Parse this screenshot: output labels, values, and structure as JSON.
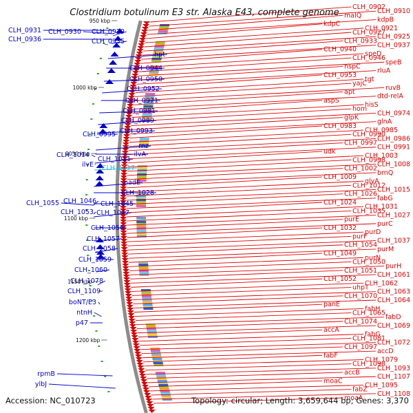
{
  "title": "Clostridium botulinum E3 str. Alaska E43, complete genome",
  "footer": {
    "accession": "Accession: NC_010723",
    "summary": "Topology: circular; Length: 3,659,644 bp; Genes: 3,370"
  },
  "colors": {
    "forward": "#0000cc",
    "reverse": "#dd0000",
    "highlight": "#22bbdd",
    "backbone": "#8c8c8c",
    "tick": "#22aa22"
  },
  "ticks": [
    "950 kbp",
    "1000 kbp",
    "1050 kbp",
    "1100 kbp",
    "1150 kbp",
    "1200 kbp"
  ],
  "left_labels": [
    "CLH_0931",
    "CLH_0930",
    "CLH_0929",
    "CLH_0936",
    "CLH_0935",
    "hpt",
    "CLH_0944",
    "CLH_0950",
    "CLH_0952",
    "CLH_0971",
    "CLH_0981",
    "CLH_0989",
    "CLH_0995",
    "CLH_0993",
    "rnz",
    "ilvA",
    "CLH_1014",
    "CLH_1011",
    "ilvE",
    "CLH_1017",
    "nadE",
    "CLH_1028",
    "CLH_1055",
    "CLH_1046",
    "CLH_1045",
    "CLH_1053",
    "CLH_1047",
    "CLH_1056",
    "CLH_1057",
    "CLH_1058",
    "CLH_1059",
    "CLH_1060",
    "CLH_1078",
    "CLH_1109",
    "boNT/E3",
    "ntnH",
    "p47",
    "rpmB",
    "ylbJ"
  ],
  "right_labels": [
    "CLH_0902",
    "CLH_0910",
    "malQ",
    "kdpB",
    "kdpC",
    "CLH_0921",
    "CLH_0927",
    "CLH_0925",
    "CLH_0933",
    "CLH_0937",
    "CLH_0940",
    "speD",
    "CLH_0946",
    "speB",
    "nspC",
    "rluA",
    "CLH_0953",
    "tgt",
    "yajC",
    "ruvB",
    "apt",
    "dtd-relA",
    "aspS",
    "hisS",
    "hom",
    "CLH_0974",
    "glpK",
    "glnA",
    "CLH_0983",
    "CLH_0985",
    "CLH_0990",
    "CLH_0986",
    "CLH_0997",
    "CLH_0991",
    "udk",
    "CLH_1003",
    "CLH_0998",
    "CLH_1008",
    "CLH_1002",
    "brnQ",
    "CLH_1009",
    "glyA",
    "CLH_1012",
    "CLH_1015",
    "CLH_1026",
    "fabG",
    "CLH_1024",
    "CLH_1031",
    "CLH_1035",
    "CLH_1027",
    "purE",
    "purC",
    "CLH_1032",
    "purD",
    "purF",
    "CLH_1037",
    "CLH_1054",
    "purM",
    "CLH_1049",
    "purN",
    "CLH_1050",
    "purH",
    "CLH_1051",
    "CLH_1061",
    "CLH_1052",
    "CLH_1062",
    "uhpT",
    "CLH_1063",
    "CLH_1070",
    "CLH_1064",
    "panE",
    "fabH",
    "CLH_1065",
    "fabD",
    "CLH_1074",
    "CLH_1069",
    "accA",
    "fabG",
    "CLH_1081",
    "CLH_1072",
    "CLH_1097",
    "accD",
    "fabF",
    "CLH_1079",
    "CLH_1098",
    "CLH_1093",
    "accB",
    "CLH_1107",
    "moaC",
    "CLH_1095",
    "fabZ",
    "CLH_1108",
    "moaA"
  ]
}
